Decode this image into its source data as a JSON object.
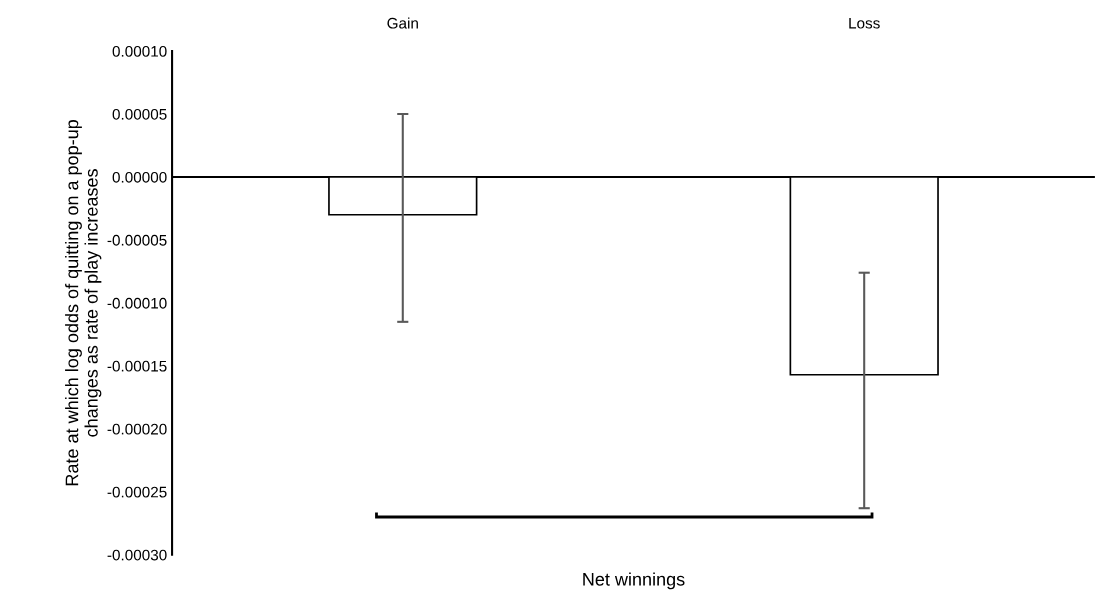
{
  "chart_data": {
    "type": "bar",
    "xlabel": "Net winnings",
    "ylabel": "Rate at which log odds of quitting on a pop-up\nchanges as rate of play increases",
    "categories": [
      "Gain",
      "Loss"
    ],
    "series": [
      {
        "color": "#ffffff",
        "values": [
          -3e-05,
          -0.000157
        ],
        "errors": [
          [
            -0.000115,
            5e-05
          ],
          [
            -0.000263,
            -7.6e-05
          ]
        ]
      }
    ],
    "ylim": [
      -0.0003,
      0.0001
    ],
    "yticks": [
      {
        "value": 0.0001,
        "label": "0.00010"
      },
      {
        "value": 5e-05,
        "label": "0.00005"
      },
      {
        "value": 0,
        "label": "0.00000"
      },
      {
        "value": -5e-05,
        "label": "-0.00005"
      },
      {
        "value": -0.0001,
        "label": "-0.00010"
      },
      {
        "value": -0.00015,
        "label": "-0.00015"
      },
      {
        "value": -0.0002,
        "label": "-0.00020"
      },
      {
        "value": -0.00025,
        "label": "-0.00025"
      },
      {
        "value": -0.0003,
        "label": "-0.00030"
      }
    ],
    "ref_lines": [
      {
        "axis": "y",
        "value": 0,
        "color": "#000000"
      }
    ]
  }
}
